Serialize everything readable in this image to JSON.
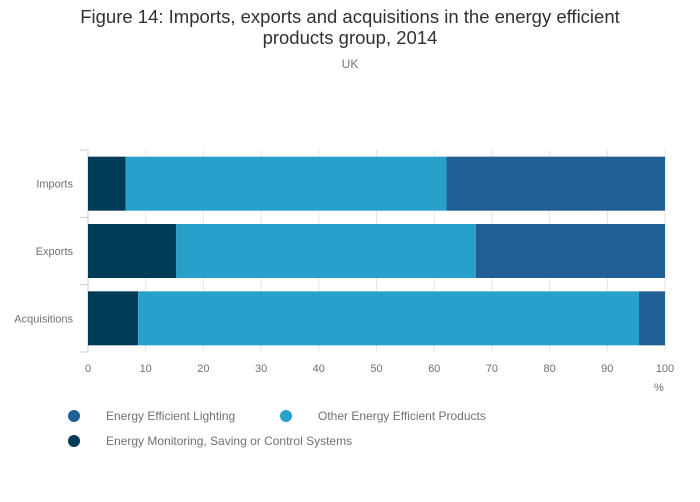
{
  "chart_data": {
    "type": "bar",
    "orientation": "horizontal",
    "stacked": true,
    "title": "Figure 14: Imports, exports and acquisitions in the energy efficient products group, 2014",
    "title_lines": [
      "Figure 14: Imports, exports and acquisitions in the energy efficient",
      "products group, 2014"
    ],
    "subtitle": "UK",
    "categories": [
      "Imports",
      "Exports",
      "Acquisitions"
    ],
    "series": [
      {
        "name": "Energy Monitoring, Saving or Control Systems",
        "values": [
          6.5,
          15.3,
          8.7
        ],
        "color": "#003c57"
      },
      {
        "name": "Other Energy Efficient Products",
        "values": [
          55.6,
          51.9,
          86.8
        ],
        "color": "#27a0cc"
      },
      {
        "name": "Energy Efficient Lighting",
        "values": [
          37.9,
          32.8,
          4.5
        ],
        "color": "#206095"
      }
    ],
    "xlim": [
      0,
      100
    ],
    "xticks": [
      0,
      10,
      20,
      30,
      40,
      50,
      60,
      70,
      80,
      90,
      100
    ],
    "xlabel": "%",
    "ylabel": "",
    "grid": true,
    "legend": {
      "position": "bottom-left",
      "order": [
        "Energy Efficient Lighting",
        "Other Energy Efficient Products",
        "Energy Monitoring, Saving or Control Systems"
      ]
    }
  },
  "colors": {
    "text": "#323132",
    "muted": "#707071",
    "grid": "#e5e5e5",
    "axis": "#cccccc"
  }
}
